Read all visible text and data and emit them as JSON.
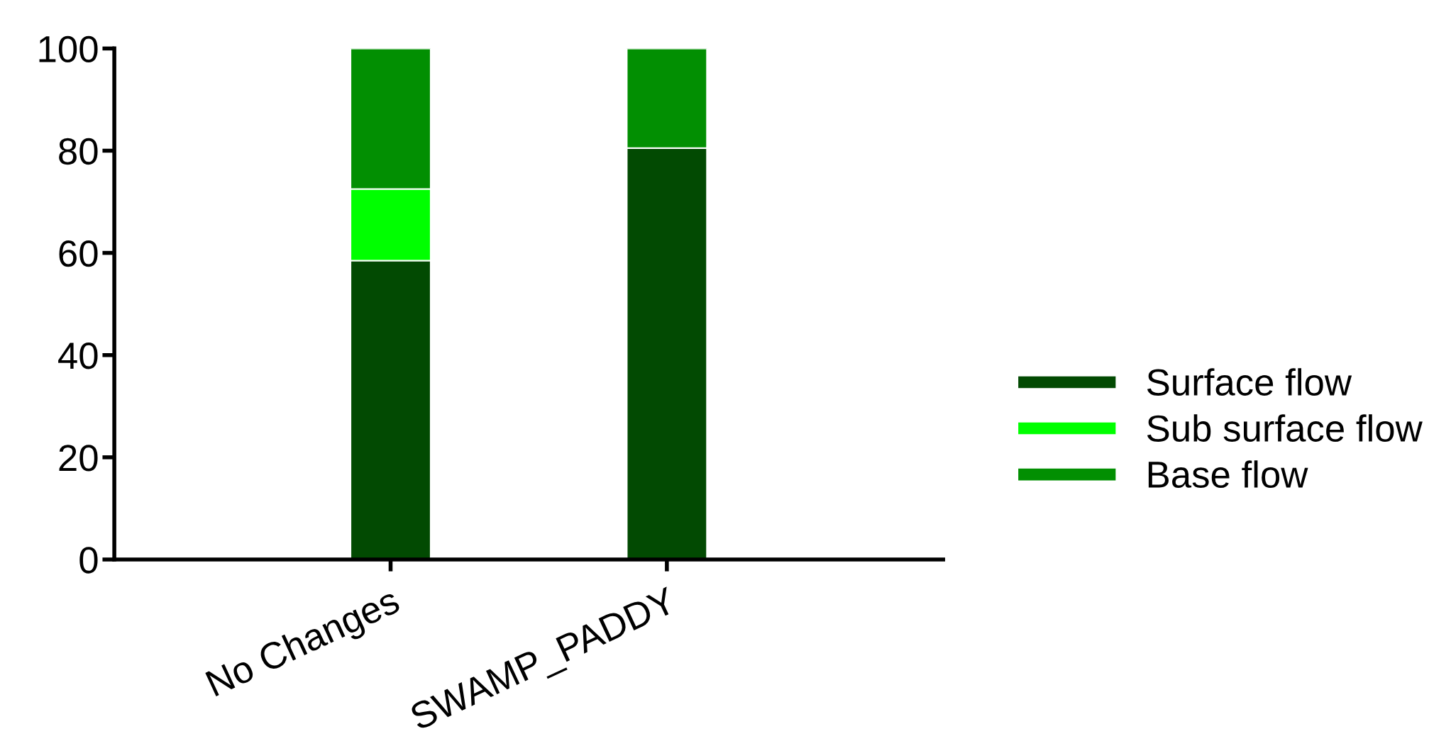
{
  "chart_data": {
    "type": "bar",
    "stacked": true,
    "categories": [
      "No Changes",
      "SWAMP_PADDY"
    ],
    "series": [
      {
        "name": "Surface flow",
        "color": "#024a02",
        "values": [
          58.5,
          80.5
        ]
      },
      {
        "name": "Sub surface flow",
        "color": "#00ff00",
        "values": [
          14,
          0
        ]
      },
      {
        "name": "Base flow",
        "color": "#028f02",
        "values": [
          27.5,
          19.5
        ]
      }
    ],
    "ylim": [
      0,
      100
    ],
    "yticks": [
      0,
      20,
      40,
      60,
      80,
      100
    ],
    "grid": false,
    "legend": "right"
  }
}
